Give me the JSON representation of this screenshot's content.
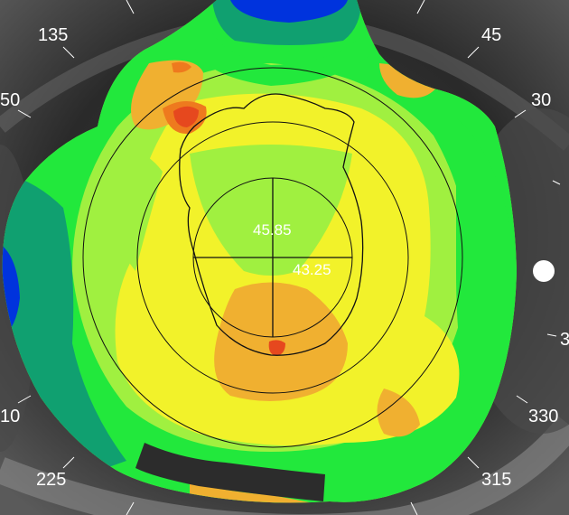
{
  "axis_labels": {
    "a135": "135",
    "a45": "45",
    "a30": "30",
    "a150": "50",
    "a210": "10",
    "a330": "330",
    "a225": "225",
    "a315": "315",
    "a0": "3"
  },
  "readings": {
    "steep_k": "45.85",
    "flat_k": "43.25"
  },
  "colors": {
    "blue": "#0033dd",
    "teal": "#10a070",
    "green": "#22e83c",
    "lime": "#a0f040",
    "yellow": "#f2f22a",
    "orange": "#f0b030",
    "dark_orange": "#ee7a1e",
    "red_orange": "#e6481e"
  }
}
